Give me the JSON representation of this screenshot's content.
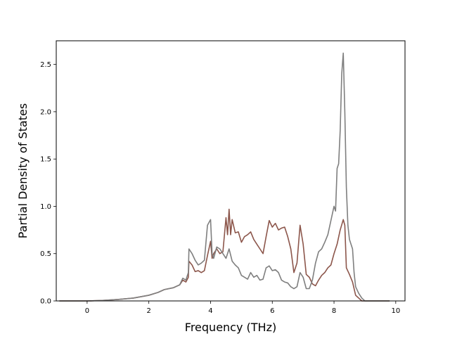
{
  "chart_data": {
    "type": "line",
    "title": "",
    "xlabel": "Frequency (THz)",
    "ylabel": "Partial Density of States",
    "xlim": [
      -1.0,
      10.3
    ],
    "ylim": [
      0.0,
      2.75
    ],
    "xticks": [
      0,
      2,
      4,
      6,
      8,
      10
    ],
    "xtick_labels": [
      "0",
      "2",
      "4",
      "6",
      "8",
      "10"
    ],
    "yticks": [
      0.0,
      0.5,
      1.0,
      1.5,
      2.0,
      2.5
    ],
    "ytick_labels": [
      "0.0",
      "0.5",
      "1.0",
      "1.5",
      "2.0",
      "2.5"
    ],
    "grid": false,
    "legend": "none",
    "series": [
      {
        "color": "#8c564b",
        "points": [
          [
            -0.9,
            0.0
          ],
          [
            0.0,
            0.0
          ],
          [
            0.5,
            0.005
          ],
          [
            1.0,
            0.015
          ],
          [
            1.5,
            0.03
          ],
          [
            2.0,
            0.06
          ],
          [
            2.3,
            0.09
          ],
          [
            2.5,
            0.12
          ],
          [
            2.8,
            0.14
          ],
          [
            3.0,
            0.17
          ],
          [
            3.1,
            0.22
          ],
          [
            3.2,
            0.2
          ],
          [
            3.28,
            0.25
          ],
          [
            3.3,
            0.42
          ],
          [
            3.4,
            0.38
          ],
          [
            3.5,
            0.31
          ],
          [
            3.6,
            0.32
          ],
          [
            3.7,
            0.3
          ],
          [
            3.8,
            0.32
          ],
          [
            3.9,
            0.48
          ],
          [
            4.0,
            0.63
          ],
          [
            4.05,
            0.45
          ],
          [
            4.1,
            0.5
          ],
          [
            4.2,
            0.55
          ],
          [
            4.3,
            0.5
          ],
          [
            4.4,
            0.52
          ],
          [
            4.5,
            0.88
          ],
          [
            4.55,
            0.7
          ],
          [
            4.6,
            0.97
          ],
          [
            4.65,
            0.7
          ],
          [
            4.7,
            0.86
          ],
          [
            4.8,
            0.72
          ],
          [
            4.9,
            0.73
          ],
          [
            5.0,
            0.62
          ],
          [
            5.1,
            0.68
          ],
          [
            5.2,
            0.7
          ],
          [
            5.3,
            0.73
          ],
          [
            5.4,
            0.65
          ],
          [
            5.5,
            0.6
          ],
          [
            5.6,
            0.55
          ],
          [
            5.7,
            0.5
          ],
          [
            5.8,
            0.68
          ],
          [
            5.9,
            0.85
          ],
          [
            6.0,
            0.78
          ],
          [
            6.1,
            0.82
          ],
          [
            6.2,
            0.75
          ],
          [
            6.3,
            0.77
          ],
          [
            6.4,
            0.78
          ],
          [
            6.5,
            0.68
          ],
          [
            6.6,
            0.55
          ],
          [
            6.7,
            0.3
          ],
          [
            6.8,
            0.4
          ],
          [
            6.9,
            0.8
          ],
          [
            7.0,
            0.6
          ],
          [
            7.1,
            0.28
          ],
          [
            7.2,
            0.25
          ],
          [
            7.3,
            0.18
          ],
          [
            7.4,
            0.16
          ],
          [
            7.5,
            0.22
          ],
          [
            7.6,
            0.27
          ],
          [
            7.7,
            0.3
          ],
          [
            7.8,
            0.35
          ],
          [
            7.9,
            0.38
          ],
          [
            8.0,
            0.5
          ],
          [
            8.1,
            0.6
          ],
          [
            8.2,
            0.75
          ],
          [
            8.3,
            0.86
          ],
          [
            8.35,
            0.8
          ],
          [
            8.4,
            0.35
          ],
          [
            8.5,
            0.28
          ],
          [
            8.6,
            0.2
          ],
          [
            8.7,
            0.06
          ],
          [
            8.8,
            0.03
          ],
          [
            8.9,
            0.0
          ],
          [
            9.0,
            0.0
          ],
          [
            9.8,
            0.0
          ]
        ]
      },
      {
        "color": "#7f7f7f",
        "points": [
          [
            -0.9,
            0.0
          ],
          [
            0.0,
            0.0
          ],
          [
            0.5,
            0.005
          ],
          [
            1.0,
            0.015
          ],
          [
            1.5,
            0.03
          ],
          [
            2.0,
            0.06
          ],
          [
            2.3,
            0.09
          ],
          [
            2.5,
            0.12
          ],
          [
            2.8,
            0.14
          ],
          [
            3.0,
            0.17
          ],
          [
            3.1,
            0.24
          ],
          [
            3.2,
            0.22
          ],
          [
            3.28,
            0.3
          ],
          [
            3.3,
            0.55
          ],
          [
            3.4,
            0.5
          ],
          [
            3.5,
            0.43
          ],
          [
            3.6,
            0.38
          ],
          [
            3.7,
            0.4
          ],
          [
            3.8,
            0.43
          ],
          [
            3.9,
            0.8
          ],
          [
            4.0,
            0.86
          ],
          [
            4.05,
            0.5
          ],
          [
            4.1,
            0.45
          ],
          [
            4.2,
            0.57
          ],
          [
            4.3,
            0.55
          ],
          [
            4.4,
            0.5
          ],
          [
            4.5,
            0.45
          ],
          [
            4.6,
            0.55
          ],
          [
            4.7,
            0.42
          ],
          [
            4.8,
            0.38
          ],
          [
            4.9,
            0.35
          ],
          [
            5.0,
            0.27
          ],
          [
            5.1,
            0.25
          ],
          [
            5.2,
            0.23
          ],
          [
            5.3,
            0.3
          ],
          [
            5.4,
            0.25
          ],
          [
            5.5,
            0.27
          ],
          [
            5.6,
            0.22
          ],
          [
            5.7,
            0.23
          ],
          [
            5.8,
            0.35
          ],
          [
            5.9,
            0.37
          ],
          [
            6.0,
            0.32
          ],
          [
            6.1,
            0.33
          ],
          [
            6.2,
            0.3
          ],
          [
            6.3,
            0.22
          ],
          [
            6.4,
            0.2
          ],
          [
            6.5,
            0.19
          ],
          [
            6.6,
            0.15
          ],
          [
            6.7,
            0.13
          ],
          [
            6.8,
            0.15
          ],
          [
            6.9,
            0.3
          ],
          [
            7.0,
            0.25
          ],
          [
            7.1,
            0.13
          ],
          [
            7.2,
            0.13
          ],
          [
            7.3,
            0.22
          ],
          [
            7.4,
            0.4
          ],
          [
            7.5,
            0.52
          ],
          [
            7.6,
            0.55
          ],
          [
            7.7,
            0.62
          ],
          [
            7.8,
            0.7
          ],
          [
            7.9,
            0.85
          ],
          [
            8.0,
            1.0
          ],
          [
            8.05,
            0.95
          ],
          [
            8.1,
            1.4
          ],
          [
            8.15,
            1.45
          ],
          [
            8.2,
            1.8
          ],
          [
            8.25,
            2.4
          ],
          [
            8.3,
            2.62
          ],
          [
            8.35,
            2.0
          ],
          [
            8.4,
            1.2
          ],
          [
            8.45,
            0.8
          ],
          [
            8.5,
            0.65
          ],
          [
            8.6,
            0.55
          ],
          [
            8.65,
            0.3
          ],
          [
            8.7,
            0.15
          ],
          [
            8.8,
            0.08
          ],
          [
            8.9,
            0.03
          ],
          [
            9.0,
            0.0
          ],
          [
            9.8,
            0.0
          ]
        ]
      }
    ]
  }
}
